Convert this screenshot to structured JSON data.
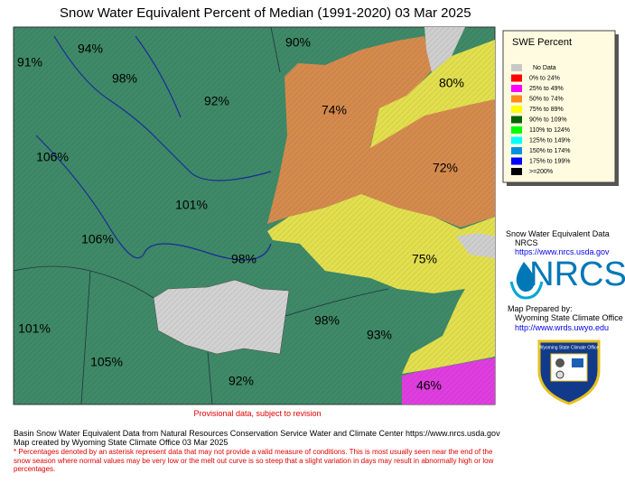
{
  "title": "Snow Water Equivalent Percent of Median (1991-2020) 03 Mar 2025",
  "map": {
    "basins": [
      {
        "label": "91%"
      },
      {
        "label": "94%"
      },
      {
        "label": "98%"
      },
      {
        "label": "90%"
      },
      {
        "label": "92%"
      },
      {
        "label": "74%"
      },
      {
        "label": "80%"
      },
      {
        "label": "72%"
      },
      {
        "label": "106%"
      },
      {
        "label": "101%"
      },
      {
        "label": "106%"
      },
      {
        "label": "98%"
      },
      {
        "label": "75%"
      },
      {
        "label": "101%"
      },
      {
        "label": "98%"
      },
      {
        "label": "93%"
      },
      {
        "label": "105%"
      },
      {
        "label": "92%"
      },
      {
        "label": "46%"
      }
    ]
  },
  "legend": {
    "title": "SWE Percent",
    "items": [
      {
        "label": "No Data",
        "color": "#c8c8c8"
      },
      {
        "label": "0% to  24%",
        "color": "#ff0000"
      },
      {
        "label": "25% to  49%",
        "color": "#ff00ff"
      },
      {
        "label": "50% to  74%",
        "color": "#ff8c1a"
      },
      {
        "label": "75% to  89%",
        "color": "#ffff00"
      },
      {
        "label": "90% to 109%",
        "color": "#006400"
      },
      {
        "label": "110% to 124%",
        "color": "#00ff00"
      },
      {
        "label": "125% to 149%",
        "color": "#00ffff"
      },
      {
        "label": "150% to 174%",
        "color": "#0090e0"
      },
      {
        "label": "175% to 199%",
        "color": "#0000ff"
      },
      {
        "label": ">=200%",
        "color": "#000000"
      }
    ]
  },
  "credits": {
    "source_title": "Snow Water Equivalent Data",
    "agency": "NRCS",
    "agency_url": "https://www.nrcs.usda.gov",
    "logo_text": "NRCS",
    "prepared_label": "Map Prepared by:",
    "preparer": "Wyoming State Climate Office",
    "preparer_url": "http://www.wrds.uwyo.edu",
    "seal_text": "Wyoming State Climate Office"
  },
  "notes": {
    "provisional": "Provisional data, subject to revision",
    "source_line": "Basin Snow Water Equivalent Data from Natural Resources Conservation Service Water and Climate Center https://www.nrcs.usda.gov",
    "created_line": "Map created by Wyoming State Climate Office 03 Mar 2025",
    "footnote_mark": "*",
    "footnote": "Percentages denoted by an asterisk represent data that may not provide a valid measure of conditions.  This is most usually seen near the end of the snow season where normal values may be very low or the melt out curve is so steep that a slight variation in days may result in abnormally high or low percentages."
  }
}
